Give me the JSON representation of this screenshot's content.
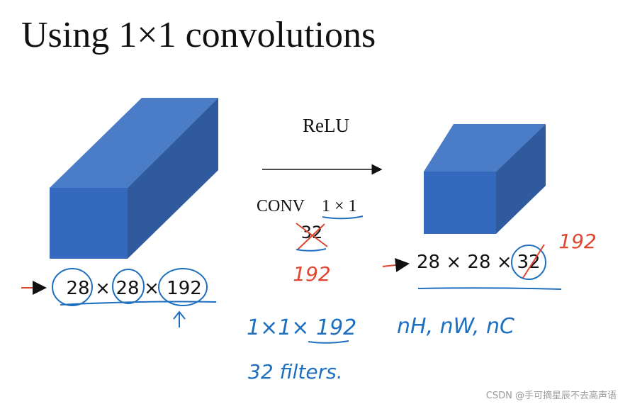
{
  "title": "Using 1×1 convolutions",
  "operation": {
    "activation": "ReLU",
    "conv_label": "CONV",
    "conv_size": "1 × 1",
    "filters_crossed": "32",
    "filters_new": "192"
  },
  "input_volume": {
    "parts": [
      "28",
      "×",
      "28",
      "×",
      "192"
    ]
  },
  "output_volume": {
    "dims": "28 × 28 ×",
    "channels_crossed": "32",
    "channels_new": "192"
  },
  "notes": {
    "filter_shape": "1×1× 192",
    "filter_count": "32 filters.",
    "notation": "nH, nW, nC"
  },
  "watermark": "CSDN @手可摘星辰不去高声语"
}
